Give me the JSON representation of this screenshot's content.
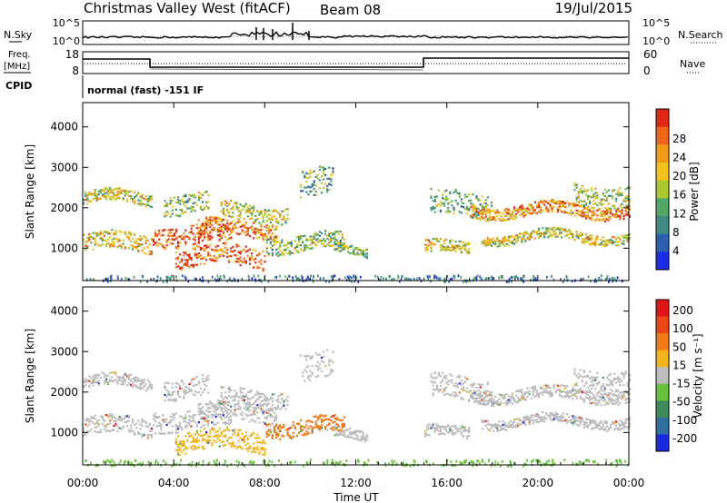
{
  "header": {
    "station": "Christmas Valley West (fitACF)",
    "beam": "Beam 08",
    "date": "19/Jul/2015"
  },
  "top_panels": {
    "nsky_label": "N.Sky",
    "nsearch_label": "N.Search",
    "noise_ticks_left": [
      "10^5",
      "10^0"
    ],
    "noise_ticks_right": [
      "10^5",
      "10^0"
    ],
    "freq_label_1": "Freq.",
    "freq_label_2": "[MHz]",
    "freq_ticks": [
      "18",
      "8"
    ],
    "nave_label": "Nave",
    "nave_ticks": [
      "60",
      "0"
    ],
    "cpid_label": "CPID",
    "cpid_text": "normal (fast) -151 IF"
  },
  "chart_data": [
    {
      "type": "heatmap",
      "name": "Power",
      "ylabel": "Slant Range [km]",
      "xlabel": "",
      "yticks": [
        "1000",
        "2000",
        "3000",
        "4000"
      ],
      "ylim": [
        200,
        4600
      ],
      "xlim_hours": [
        0,
        24
      ],
      "colorbar_label": "Power [dB]",
      "colorbar_ticks": [
        "4",
        "8",
        "12",
        "16",
        "20",
        "24",
        "28"
      ],
      "colorbar_colors": [
        "#1e2be6",
        "#2b5fb0",
        "#3d8c84",
        "#52a869",
        "#a8c92e",
        "#f2c21a",
        "#f29a14",
        "#f0641a",
        "#e02814"
      ]
    },
    {
      "type": "heatmap",
      "name": "Velocity",
      "ylabel": "Slant Range [km]",
      "xlabel": "Time UT",
      "xticks": [
        "00:00",
        "04:00",
        "08:00",
        "12:00",
        "16:00",
        "20:00",
        "00:00"
      ],
      "yticks": [
        "1000",
        "2000",
        "3000",
        "4000"
      ],
      "ylim": [
        200,
        4600
      ],
      "xlim_hours": [
        0,
        24
      ],
      "colorbar_label": "Velocity [m s⁻¹]",
      "colorbar_ticks": [
        "200",
        "100",
        "50",
        "15",
        "-15",
        "-50",
        "-100",
        "-200"
      ],
      "colorbar_colors": [
        "#1a2ae0",
        "#2e6fa0",
        "#3e8a5a",
        "#66c23a",
        "#bdbdbd",
        "#f2b41a",
        "#f07a14",
        "#ec4614",
        "#e01414"
      ]
    }
  ]
}
